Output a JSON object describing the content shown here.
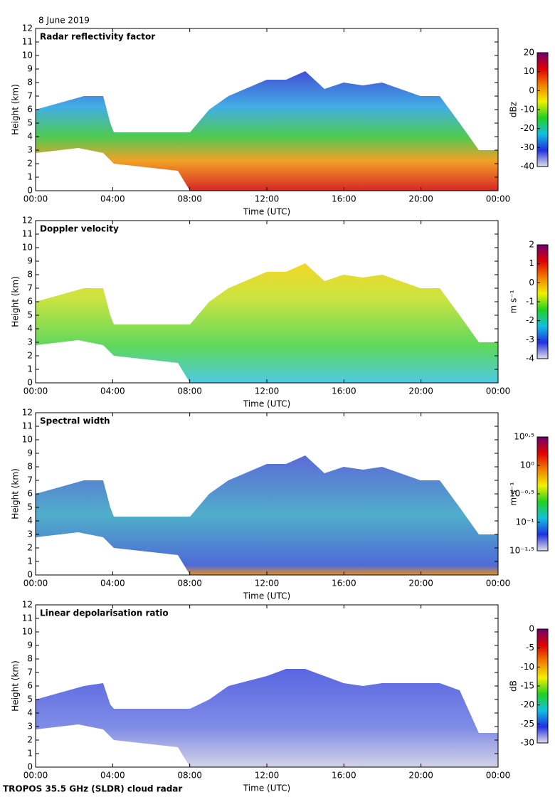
{
  "date": "8 June 2019",
  "footer": "TROPOS 35.5 GHz (SLDR) cloud radar",
  "chart_data": [
    {
      "type": "heatmap",
      "title": "Radar reflectivity factor",
      "xlabel": "Time (UTC)",
      "ylabel": "Height (km)",
      "xlim": [
        0,
        24
      ],
      "xticks": [
        {
          "value": 0,
          "label": "00:00"
        },
        {
          "value": 4,
          "label": "04:00"
        },
        {
          "value": 8,
          "label": "08:00"
        },
        {
          "value": 12,
          "label": "12:00"
        },
        {
          "value": 16,
          "label": "16:00"
        },
        {
          "value": 20,
          "label": "20:00"
        },
        {
          "value": 24,
          "label": "00:00"
        }
      ],
      "ylim": [
        0,
        12
      ],
      "yticks": [
        0,
        1,
        2,
        3,
        4,
        5,
        6,
        7,
        8,
        9,
        10,
        11,
        12
      ],
      "colorbar": {
        "label": "dBz",
        "lim": [
          -40,
          20
        ],
        "ticks": [
          -40,
          -30,
          -20,
          -10,
          0,
          10,
          20
        ],
        "log": false,
        "colors": [
          "#e0e0e8",
          "#2030e0",
          "#10c0e0",
          "#20d020",
          "#f0f000",
          "#f08000",
          "#e00000",
          "#700070"
        ]
      }
    },
    {
      "type": "heatmap",
      "title": "Doppler velocity",
      "xlabel": "Time (UTC)",
      "ylabel": "Height (km)",
      "xlim": [
        0,
        24
      ],
      "xticks": [
        {
          "value": 0,
          "label": "00:00"
        },
        {
          "value": 4,
          "label": "04:00"
        },
        {
          "value": 8,
          "label": "08:00"
        },
        {
          "value": 12,
          "label": "12:00"
        },
        {
          "value": 16,
          "label": "16:00"
        },
        {
          "value": 20,
          "label": "20:00"
        },
        {
          "value": 24,
          "label": "00:00"
        }
      ],
      "ylim": [
        0,
        12
      ],
      "yticks": [
        0,
        1,
        2,
        3,
        4,
        5,
        6,
        7,
        8,
        9,
        10,
        11,
        12
      ],
      "colorbar": {
        "label": "m s⁻¹",
        "lim": [
          -4,
          2
        ],
        "ticks": [
          -4,
          -3,
          -2,
          -1,
          0,
          1,
          2
        ],
        "log": false,
        "colors": [
          "#e0e0e8",
          "#2030e0",
          "#10c0e0",
          "#20d020",
          "#f0f000",
          "#f08000",
          "#e00000",
          "#700070"
        ]
      }
    },
    {
      "type": "heatmap",
      "title": "Spectral width",
      "xlabel": "Time (UTC)",
      "ylabel": "Height (km)",
      "xlim": [
        0,
        24
      ],
      "xticks": [
        {
          "value": 0,
          "label": "00:00"
        },
        {
          "value": 4,
          "label": "04:00"
        },
        {
          "value": 8,
          "label": "08:00"
        },
        {
          "value": 12,
          "label": "12:00"
        },
        {
          "value": 16,
          "label": "16:00"
        },
        {
          "value": 20,
          "label": "20:00"
        },
        {
          "value": 24,
          "label": "00:00"
        }
      ],
      "ylim": [
        0,
        12
      ],
      "yticks": [
        0,
        1,
        2,
        3,
        4,
        5,
        6,
        7,
        8,
        9,
        10,
        11,
        12
      ],
      "colorbar": {
        "label": "m s⁻¹",
        "lim": [
          0.0316,
          3.162
        ],
        "log": true,
        "ticks": [
          {
            "value": 0.0316,
            "label": "10⁻¹·⁵"
          },
          {
            "value": 0.1,
            "label": "10⁻¹"
          },
          {
            "value": 0.316,
            "label": "10⁻⁰·⁵"
          },
          {
            "value": 1,
            "label": "10⁰"
          },
          {
            "value": 3.162,
            "label": "10⁰·⁵"
          }
        ],
        "colors": [
          "#e0e0e8",
          "#2030e0",
          "#10c0e0",
          "#20d020",
          "#f0f000",
          "#f08000",
          "#e00000",
          "#700070"
        ]
      }
    },
    {
      "type": "heatmap",
      "title": "Linear depolarisation ratio",
      "xlabel": "Time (UTC)",
      "ylabel": "Height (km)",
      "xlim": [
        0,
        24
      ],
      "xticks": [
        {
          "value": 0,
          "label": "00:00"
        },
        {
          "value": 4,
          "label": "04:00"
        },
        {
          "value": 8,
          "label": "08:00"
        },
        {
          "value": 12,
          "label": "12:00"
        },
        {
          "value": 16,
          "label": "16:00"
        },
        {
          "value": 20,
          "label": "20:00"
        },
        {
          "value": 24,
          "label": "00:00"
        }
      ],
      "ylim": [
        0,
        12
      ],
      "yticks": [
        0,
        1,
        2,
        3,
        4,
        5,
        6,
        7,
        8,
        9,
        10,
        11,
        12
      ],
      "colorbar": {
        "label": "dB",
        "lim": [
          -30,
          0
        ],
        "ticks": [
          -30,
          -25,
          -20,
          -15,
          -10,
          -5,
          0
        ],
        "log": false,
        "colors": [
          "#e0e0e8",
          "#2030e0",
          "#10c0e0",
          "#20d020",
          "#f0f000",
          "#f08000",
          "#e00000",
          "#700070"
        ]
      }
    }
  ]
}
